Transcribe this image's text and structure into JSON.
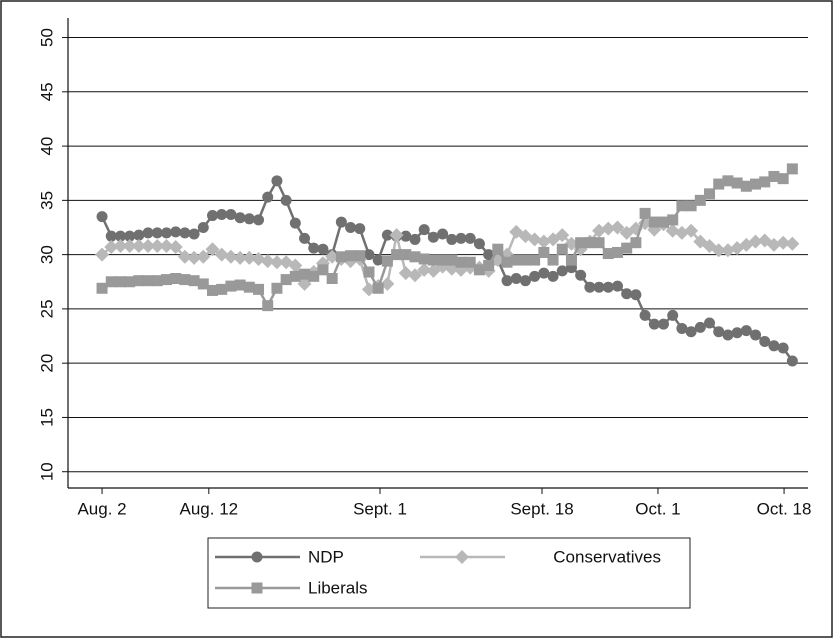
{
  "chart_data": {
    "type": "line",
    "x": [
      0,
      1,
      2,
      3,
      4,
      5,
      6,
      7,
      8,
      9,
      10,
      11,
      12,
      13,
      14,
      15,
      16,
      17,
      18,
      19,
      20,
      21,
      22,
      23,
      24,
      25,
      26,
      27,
      28,
      29,
      30,
      31,
      32,
      33,
      34,
      35,
      36,
      37,
      38,
      39,
      40,
      41,
      42,
      43,
      44,
      45,
      46,
      47,
      48,
      49,
      50,
      51,
      52,
      53,
      54,
      55,
      56,
      57,
      58,
      59,
      60,
      61,
      62,
      63,
      64,
      65,
      66,
      67,
      68,
      69,
      70,
      71,
      72,
      73,
      74,
      75
    ],
    "series": [
      {
        "name": "NDP",
        "color": "#707070",
        "marker": "circle",
        "values": [
          33.5,
          31.7,
          31.7,
          31.7,
          31.8,
          32,
          32,
          32,
          32.1,
          32,
          31.9,
          32.5,
          33.6,
          33.7,
          33.7,
          33.4,
          33.3,
          33.2,
          35.3,
          36.8,
          35,
          32.9,
          31.5,
          30.6,
          30.5,
          30,
          33,
          32.5,
          32.4,
          30,
          29.5,
          31.8,
          31.7,
          31.7,
          31.4,
          32.3,
          31.6,
          31.9,
          31.4,
          31.5,
          31.5,
          31,
          30,
          29.5,
          27.6,
          27.8,
          27.6,
          28,
          28.3,
          28,
          28.5,
          28.8,
          28.1,
          27,
          27,
          27,
          27.1,
          26.4,
          26.3,
          24.4,
          23.6,
          23.6,
          24.4,
          23.2,
          22.9,
          23.3,
          23.7,
          22.9,
          22.6,
          22.8,
          23,
          22.6,
          22,
          21.6,
          21.4,
          20.2
        ]
      },
      {
        "name": "Conservatives",
        "color": "#b8b8b8",
        "marker": "diamond",
        "values": [
          30,
          30.7,
          30.8,
          30.8,
          30.8,
          30.8,
          30.8,
          30.8,
          30.7,
          29.8,
          29.7,
          29.8,
          30.5,
          30,
          29.8,
          29.7,
          29.7,
          29.6,
          29.4,
          29.3,
          29.3,
          29,
          27.3,
          28.4,
          29.2,
          29.8,
          29.6,
          29.4,
          29.6,
          26.8,
          27.1,
          27.3,
          31.8,
          28.3,
          28.1,
          28.6,
          28.5,
          28.9,
          28.7,
          28.6,
          28.8,
          28.8,
          28.5,
          29.5,
          30,
          32.1,
          31.7,
          31.4,
          31.2,
          31.4,
          31.8,
          31,
          30.5,
          31.2,
          32.2,
          32.4,
          32.5,
          32,
          32.4,
          32.9,
          32.3,
          32.8,
          32.2,
          32,
          32.2,
          31.2,
          30.8,
          30.4,
          30.4,
          30.6,
          30.9,
          31.2,
          31.3,
          30.9,
          31.1,
          31
        ]
      },
      {
        "name": "Liberals",
        "color": "#999999",
        "marker": "square",
        "values": [
          26.9,
          27.5,
          27.5,
          27.5,
          27.6,
          27.6,
          27.6,
          27.7,
          27.8,
          27.7,
          27.6,
          27.3,
          26.7,
          26.8,
          27.1,
          27.2,
          27,
          26.8,
          25.3,
          26.9,
          27.7,
          28,
          28.2,
          28,
          28.6,
          27.8,
          29.8,
          29.9,
          29.9,
          28.4,
          26.9,
          29.4,
          30,
          30,
          29.8,
          29.6,
          29.5,
          29.5,
          29.5,
          29.3,
          29.3,
          28.6,
          29,
          30.5,
          29.3,
          29.5,
          29.5,
          29.5,
          30.2,
          29.5,
          30.5,
          29.5,
          31.1,
          31.1,
          31.1,
          30.1,
          30.2,
          30.6,
          31.1,
          33.8,
          33,
          33,
          33.2,
          34.5,
          34.5,
          35,
          35.6,
          36.5,
          36.8,
          36.6,
          36.3,
          36.5,
          36.7,
          37.2,
          37,
          37.9
        ]
      }
    ],
    "xlim": [
      -3.7,
      76.7
    ],
    "xticks": [
      {
        "value": 0,
        "label": "Aug. 2"
      },
      {
        "value": 11.6,
        "label": "Aug. 12"
      },
      {
        "value": 30.2,
        "label": "Sept. 1"
      },
      {
        "value": 47.8,
        "label": "Sept. 18"
      },
      {
        "value": 60.4,
        "label": "Oct. 1"
      },
      {
        "value": 74.1,
        "label": "Oct. 18"
      }
    ],
    "ylim": [
      8.5,
      51.8
    ],
    "yticks": [
      10,
      15,
      20,
      25,
      30,
      35,
      40,
      45,
      50
    ],
    "grid": true
  }
}
